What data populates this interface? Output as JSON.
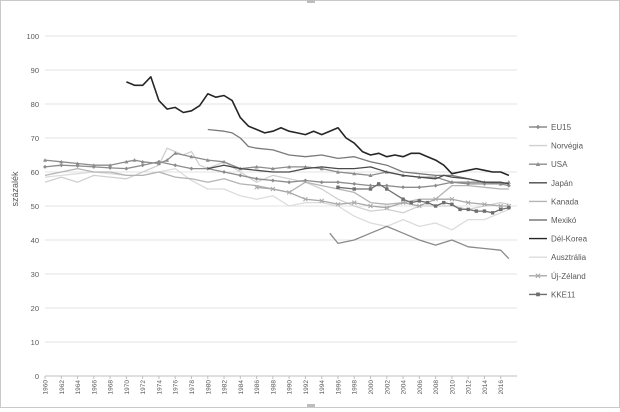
{
  "chart_data": {
    "type": "line",
    "title": "",
    "xlabel": "",
    "ylabel": "százalék",
    "ylim": [
      0,
      100
    ],
    "yticks": [
      0,
      10,
      20,
      30,
      40,
      50,
      60,
      70,
      80,
      90,
      100
    ],
    "xlim": [
      1960,
      2018
    ],
    "xticks": [
      1960,
      1962,
      1964,
      1966,
      1968,
      1970,
      1972,
      1974,
      1976,
      1978,
      1980,
      1982,
      1984,
      1986,
      1988,
      1990,
      1992,
      1994,
      1996,
      1998,
      2000,
      2002,
      2004,
      2006,
      2008,
      2010,
      2012,
      2014,
      2016
    ],
    "legend_position": "right",
    "grid": "horizontal",
    "series": [
      {
        "name": "EU15",
        "color": "#8c8c8c",
        "marker": "diamond",
        "points": [
          [
            1960,
            61.5
          ],
          [
            1962,
            62
          ],
          [
            1964,
            61.8
          ],
          [
            1966,
            61.5
          ],
          [
            1968,
            61.2
          ],
          [
            1970,
            61
          ],
          [
            1972,
            62
          ],
          [
            1974,
            63
          ],
          [
            1976,
            62
          ],
          [
            1978,
            61
          ],
          [
            1980,
            61
          ],
          [
            1982,
            60
          ],
          [
            1984,
            59
          ],
          [
            1986,
            58
          ],
          [
            1988,
            57.5
          ],
          [
            1990,
            57
          ],
          [
            1992,
            57.5
          ],
          [
            1994,
            57
          ],
          [
            1996,
            57
          ],
          [
            1998,
            56.5
          ],
          [
            2000,
            56
          ],
          [
            2002,
            56
          ],
          [
            2004,
            55.5
          ],
          [
            2006,
            55.5
          ],
          [
            2008,
            56
          ],
          [
            2010,
            57
          ],
          [
            2012,
            56.5
          ],
          [
            2014,
            56.5
          ],
          [
            2016,
            56.5
          ],
          [
            2017,
            56
          ]
        ]
      },
      {
        "name": "Norvégia",
        "color": "#d0d0d0",
        "marker": "none",
        "points": [
          [
            1960,
            57
          ],
          [
            1962,
            58.5
          ],
          [
            1964,
            57
          ],
          [
            1966,
            59
          ],
          [
            1968,
            58.5
          ],
          [
            1970,
            58
          ],
          [
            1972,
            60
          ],
          [
            1974,
            62
          ],
          [
            1975,
            67
          ],
          [
            1976,
            66
          ],
          [
            1977,
            65
          ],
          [
            1978,
            66
          ],
          [
            1979,
            62
          ],
          [
            1980,
            61
          ],
          [
            1981,
            62
          ],
          [
            1982,
            63
          ],
          [
            1984,
            60
          ],
          [
            1986,
            57
          ],
          [
            1988,
            59
          ],
          [
            1990,
            58
          ],
          [
            1992,
            57
          ],
          [
            1994,
            55
          ],
          [
            1996,
            52
          ],
          [
            1998,
            50
          ],
          [
            2000,
            48.5
          ],
          [
            2002,
            49
          ],
          [
            2004,
            48
          ],
          [
            2006,
            50
          ],
          [
            2008,
            50
          ],
          [
            2010,
            50
          ],
          [
            2012,
            49
          ],
          [
            2014,
            50
          ],
          [
            2016,
            51
          ],
          [
            2017,
            50.5
          ]
        ]
      },
      {
        "name": "USA",
        "color": "#8c8c8c",
        "marker": "triangle",
        "points": [
          [
            1960,
            63.5
          ],
          [
            1962,
            63
          ],
          [
            1964,
            62.5
          ],
          [
            1966,
            62
          ],
          [
            1968,
            62
          ],
          [
            1970,
            63
          ],
          [
            1971,
            63.5
          ],
          [
            1972,
            63
          ],
          [
            1974,
            62.5
          ],
          [
            1975,
            63.5
          ],
          [
            1976,
            65.5
          ],
          [
            1978,
            64.5
          ],
          [
            1980,
            63.5
          ],
          [
            1982,
            63
          ],
          [
            1984,
            61
          ],
          [
            1986,
            61.5
          ],
          [
            1988,
            61
          ],
          [
            1990,
            61.5
          ],
          [
            1992,
            61.5
          ],
          [
            1994,
            61
          ],
          [
            1996,
            60
          ],
          [
            1998,
            59.5
          ],
          [
            2000,
            59
          ],
          [
            2002,
            60
          ],
          [
            2004,
            59
          ],
          [
            2006,
            58.5
          ],
          [
            2008,
            58.5
          ],
          [
            2010,
            57
          ],
          [
            2012,
            57
          ],
          [
            2014,
            57
          ],
          [
            2016,
            56.5
          ],
          [
            2017,
            57
          ]
        ]
      },
      {
        "name": "Japán",
        "color": "#4a4a4a",
        "marker": "none",
        "points": [
          [
            1980,
            61
          ],
          [
            1982,
            62
          ],
          [
            1984,
            61
          ],
          [
            1986,
            60.5
          ],
          [
            1988,
            60
          ],
          [
            1990,
            60
          ],
          [
            1992,
            61
          ],
          [
            1994,
            61.5
          ],
          [
            1996,
            61
          ],
          [
            1998,
            61
          ],
          [
            2000,
            61.5
          ],
          [
            2002,
            60
          ],
          [
            2004,
            59
          ],
          [
            2006,
            58.5
          ],
          [
            2008,
            58
          ],
          [
            2009,
            59
          ],
          [
            2010,
            58.5
          ],
          [
            2012,
            58
          ],
          [
            2014,
            57
          ],
          [
            2016,
            57
          ],
          [
            2017,
            56.5
          ]
        ]
      },
      {
        "name": "Kanada",
        "color": "#b4b4b4",
        "marker": "none",
        "points": [
          [
            1960,
            59
          ],
          [
            1962,
            60
          ],
          [
            1964,
            61
          ],
          [
            1966,
            60
          ],
          [
            1968,
            60
          ],
          [
            1970,
            59
          ],
          [
            1972,
            59
          ],
          [
            1974,
            60
          ],
          [
            1976,
            58.5
          ],
          [
            1978,
            58
          ],
          [
            1980,
            57
          ],
          [
            1982,
            58
          ],
          [
            1984,
            56.5
          ],
          [
            1986,
            56
          ],
          [
            1988,
            55
          ],
          [
            1990,
            54
          ],
          [
            1992,
            57
          ],
          [
            1994,
            56
          ],
          [
            1996,
            55
          ],
          [
            1998,
            54
          ],
          [
            2000,
            51
          ],
          [
            2002,
            50.5
          ],
          [
            2004,
            51
          ],
          [
            2006,
            52
          ],
          [
            2008,
            52
          ],
          [
            2010,
            56
          ],
          [
            2012,
            56
          ],
          [
            2014,
            55.5
          ],
          [
            2016,
            55
          ],
          [
            2017,
            55
          ]
        ]
      },
      {
        "name": "Mexikó",
        "color": "#7a7a7a",
        "marker": "none",
        "points": [
          [
            1980,
            72.5
          ],
          [
            1982,
            72
          ],
          [
            1983,
            71.5
          ],
          [
            1984,
            70
          ],
          [
            1985,
            67.5
          ],
          [
            1986,
            67
          ],
          [
            1988,
            66.5
          ],
          [
            1990,
            65
          ],
          [
            1992,
            64.5
          ],
          [
            1994,
            65
          ],
          [
            1996,
            64
          ],
          [
            1998,
            64.5
          ],
          [
            2000,
            63
          ],
          [
            2002,
            62
          ],
          [
            2004,
            60
          ],
          [
            2006,
            59.5
          ],
          [
            2008,
            59
          ],
          [
            2010,
            59
          ],
          [
            2012,
            58
          ],
          [
            2014,
            57
          ],
          [
            2016,
            57
          ],
          [
            2017,
            56.5
          ]
        ]
      },
      {
        "name": "Dél-Korea",
        "color": "#262626",
        "marker": "none",
        "points": [
          [
            1970,
            86.5
          ],
          [
            1971,
            85.5
          ],
          [
            1972,
            85.5
          ],
          [
            1973,
            88
          ],
          [
            1974,
            81
          ],
          [
            1975,
            78.5
          ],
          [
            1976,
            79
          ],
          [
            1977,
            77.5
          ],
          [
            1978,
            78
          ],
          [
            1979,
            79.5
          ],
          [
            1980,
            83
          ],
          [
            1981,
            82
          ],
          [
            1982,
            82.5
          ],
          [
            1983,
            81
          ],
          [
            1984,
            76
          ],
          [
            1985,
            73.5
          ],
          [
            1986,
            72.5
          ],
          [
            1987,
            71.5
          ],
          [
            1988,
            72
          ],
          [
            1989,
            73
          ],
          [
            1990,
            72
          ],
          [
            1991,
            71.5
          ],
          [
            1992,
            71
          ],
          [
            1993,
            72
          ],
          [
            1994,
            71
          ],
          [
            1995,
            72
          ],
          [
            1996,
            73
          ],
          [
            1997,
            70
          ],
          [
            1998,
            68.5
          ],
          [
            1999,
            66
          ],
          [
            2000,
            65
          ],
          [
            2001,
            65.5
          ],
          [
            2002,
            64.5
          ],
          [
            2003,
            65
          ],
          [
            2004,
            64.5
          ],
          [
            2005,
            65.5
          ],
          [
            2006,
            65.5
          ],
          [
            2007,
            64.5
          ],
          [
            2008,
            63.5
          ],
          [
            2009,
            62
          ],
          [
            2010,
            59.5
          ],
          [
            2011,
            60
          ],
          [
            2012,
            60.5
          ],
          [
            2013,
            61
          ],
          [
            2014,
            60.5
          ],
          [
            2015,
            60
          ],
          [
            2016,
            60
          ],
          [
            2017,
            59
          ]
        ]
      },
      {
        "name": "Ausztrália",
        "color": "#dcdcdc",
        "marker": "none",
        "points": [
          [
            1960,
            58.5
          ],
          [
            1962,
            59
          ],
          [
            1964,
            59.5
          ],
          [
            1966,
            60
          ],
          [
            1968,
            59.5
          ],
          [
            1970,
            59
          ],
          [
            1972,
            59
          ],
          [
            1974,
            60
          ],
          [
            1976,
            61
          ],
          [
            1978,
            57.5
          ],
          [
            1980,
            55
          ],
          [
            1982,
            55
          ],
          [
            1984,
            53
          ],
          [
            1986,
            52
          ],
          [
            1988,
            53
          ],
          [
            1990,
            50
          ],
          [
            1992,
            51
          ],
          [
            1994,
            51
          ],
          [
            1996,
            50
          ],
          [
            1998,
            47
          ],
          [
            2000,
            45
          ],
          [
            2002,
            44
          ],
          [
            2004,
            46
          ],
          [
            2006,
            44
          ],
          [
            2008,
            45
          ],
          [
            2010,
            43
          ],
          [
            2012,
            46
          ],
          [
            2014,
            46
          ],
          [
            2016,
            48
          ],
          [
            2017,
            49
          ]
        ]
      },
      {
        "name": "Új-Zéland",
        "color": "#a8a8a8",
        "marker": "x",
        "points": [
          [
            1986,
            55.5
          ],
          [
            1988,
            55
          ],
          [
            1990,
            54
          ],
          [
            1992,
            52
          ],
          [
            1994,
            51.5
          ],
          [
            1996,
            50.5
          ],
          [
            1998,
            51
          ],
          [
            2000,
            50
          ],
          [
            2002,
            49.5
          ],
          [
            2004,
            51
          ],
          [
            2006,
            50
          ],
          [
            2008,
            52
          ],
          [
            2010,
            52
          ],
          [
            2012,
            51
          ],
          [
            2014,
            50.5
          ],
          [
            2016,
            50
          ],
          [
            2017,
            50
          ]
        ]
      },
      {
        "name": "KKE11",
        "color": "#6e6e6e",
        "marker": "square",
        "points": [
          [
            1996,
            55.5
          ],
          [
            1998,
            55
          ],
          [
            2000,
            55
          ],
          [
            2001,
            56.5
          ],
          [
            2002,
            55
          ],
          [
            2004,
            52
          ],
          [
            2005,
            51
          ],
          [
            2006,
            51.5
          ],
          [
            2007,
            51
          ],
          [
            2008,
            50
          ],
          [
            2009,
            51
          ],
          [
            2010,
            50.5
          ],
          [
            2011,
            49
          ],
          [
            2012,
            49
          ],
          [
            2013,
            48.5
          ],
          [
            2014,
            48.5
          ],
          [
            2015,
            48
          ],
          [
            2016,
            49
          ],
          [
            2017,
            49.5
          ]
        ]
      },
      {
        "name": "",
        "color": "#8a8a8a",
        "marker": "none",
        "points": [
          [
            1995,
            42
          ],
          [
            1996,
            39
          ],
          [
            1998,
            40
          ],
          [
            2000,
            42
          ],
          [
            2002,
            44
          ],
          [
            2004,
            42
          ],
          [
            2006,
            40
          ],
          [
            2008,
            38.5
          ],
          [
            2010,
            40
          ],
          [
            2012,
            38
          ],
          [
            2014,
            37.5
          ],
          [
            2016,
            37
          ],
          [
            2017,
            34.5
          ]
        ]
      }
    ]
  }
}
